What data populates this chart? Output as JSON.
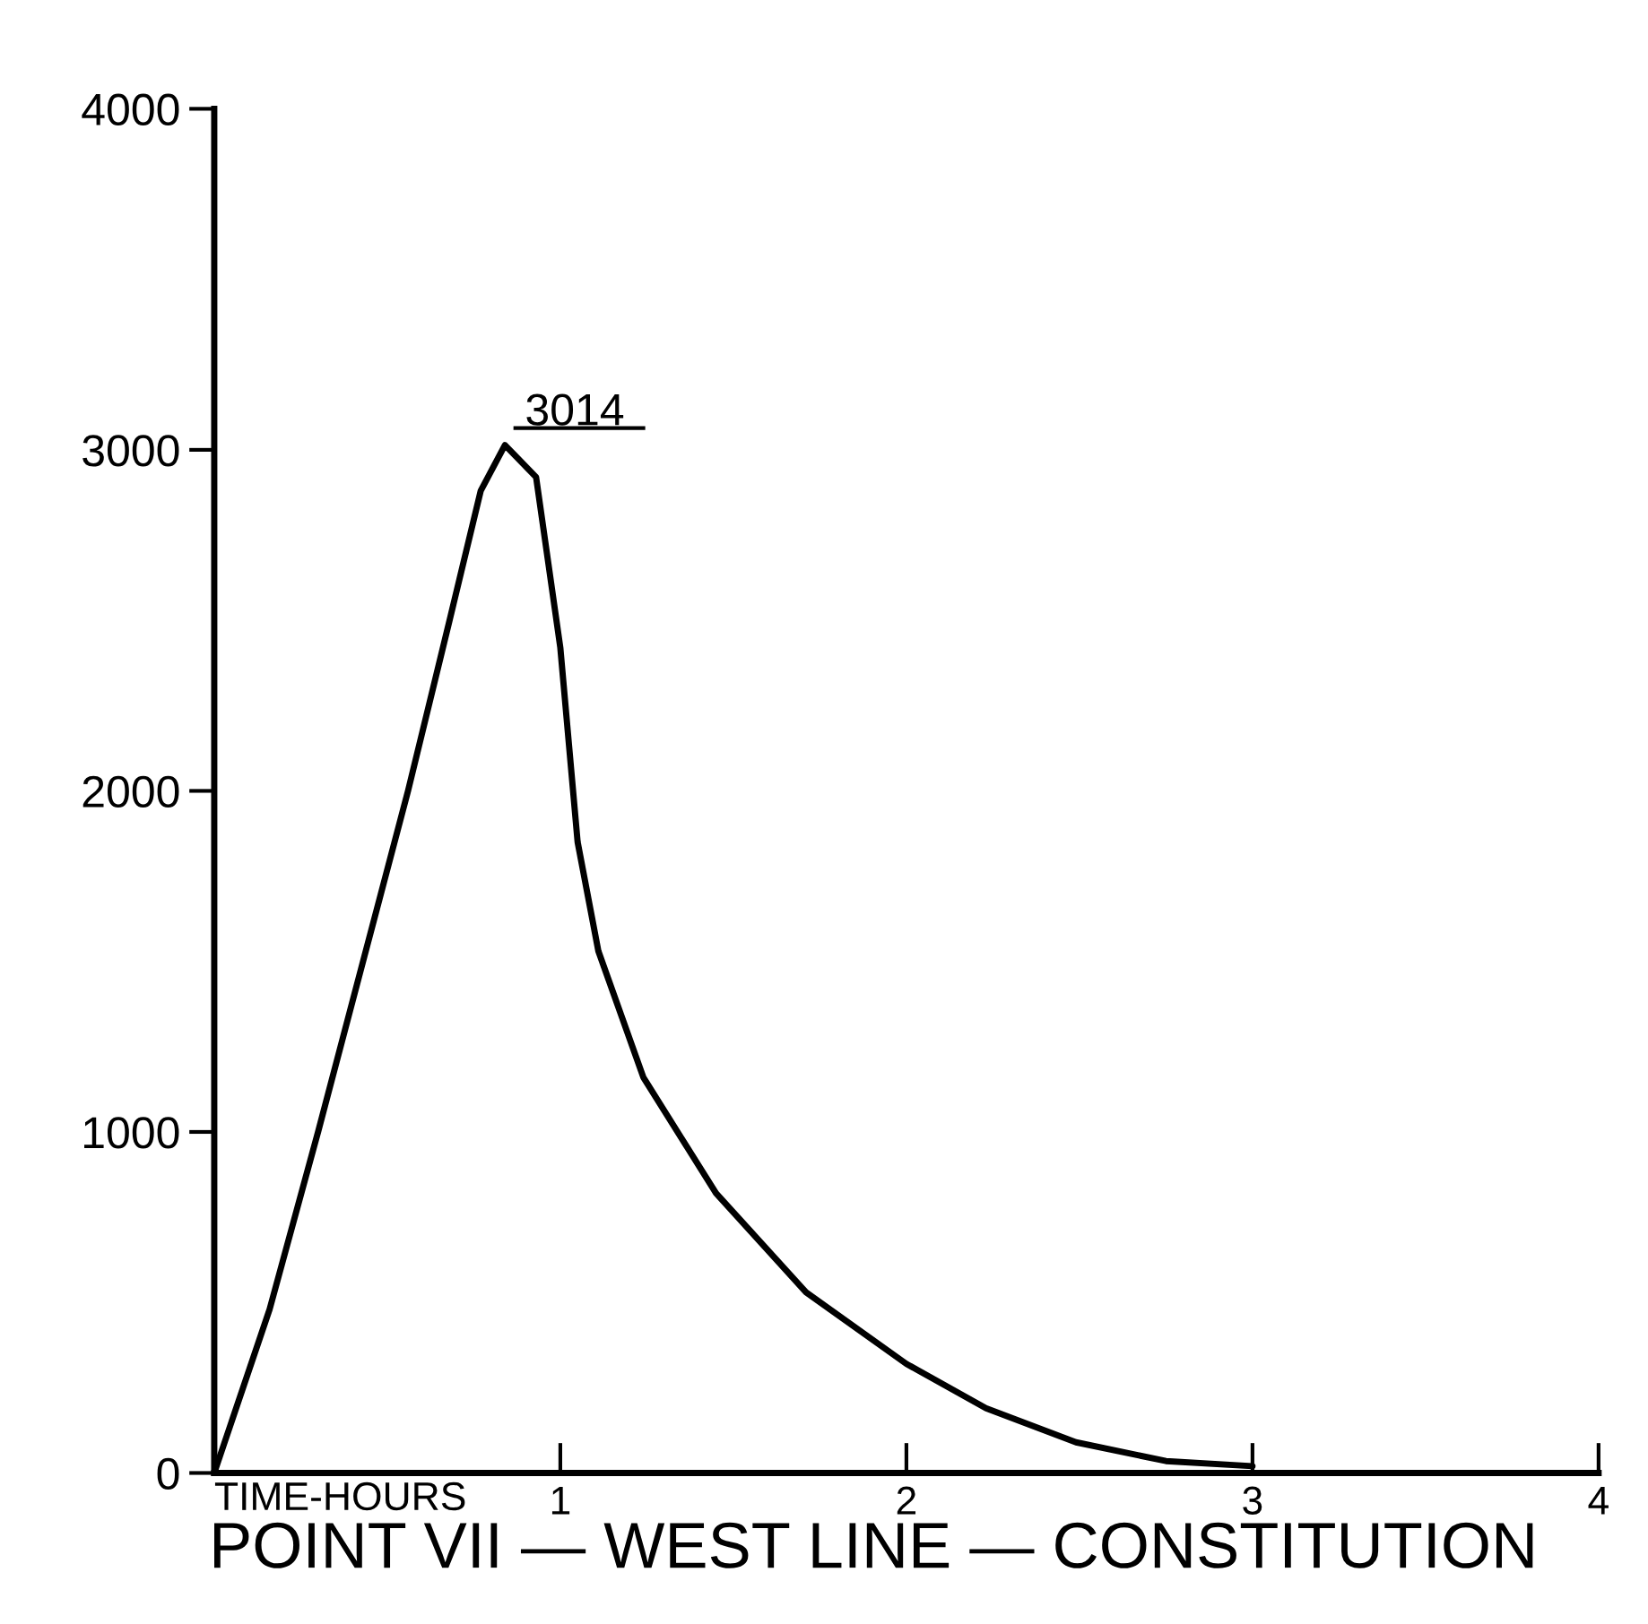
{
  "chart_data": {
    "type": "line",
    "title": "POINT VII — WEST LINE — CONSTITUTION",
    "xlabel": "TIME-HOURS",
    "x": [
      0,
      0.16,
      0.3,
      0.43,
      0.56,
      0.68,
      0.77,
      0.84,
      0.93,
      1.0,
      1.05,
      1.11,
      1.24,
      1.45,
      1.71,
      2.0,
      2.23,
      2.49,
      2.75,
      3.0
    ],
    "series": [
      {
        "color": "#000000",
        "values": [
          0,
          480,
          1000,
          1500,
          2000,
          2500,
          2880,
          3014,
          2920,
          2420,
          1850,
          1530,
          1160,
          820,
          530,
          320,
          190,
          90,
          35,
          20
        ]
      }
    ],
    "annotations": [
      {
        "text": "3014",
        "x": 0.84,
        "y": 3014
      }
    ],
    "xlim": [
      0,
      4
    ],
    "ylim": [
      0,
      4000
    ],
    "xticks": [
      1,
      2,
      3,
      4
    ],
    "yticks": [
      0,
      1000,
      2000,
      3000,
      4000
    ],
    "grid": false,
    "legend": false,
    "marker": "none",
    "line_style": "solid"
  }
}
